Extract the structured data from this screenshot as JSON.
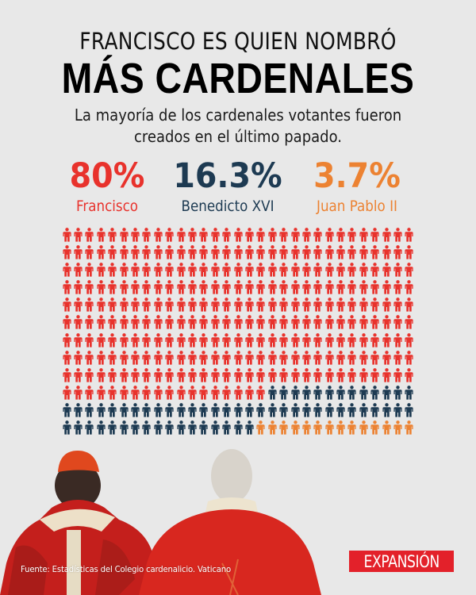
{
  "header": {
    "title_line1": "FRANCISCO ES QUIEN NOMBRÓ",
    "title_line2": "MÁS CARDENALES",
    "subtitle_line1": "La mayoría de los cardenales votantes fueron",
    "subtitle_line2": "creados en el último papado."
  },
  "stats": [
    {
      "value": "80%",
      "label": "Francisco",
      "color": "#e8322c"
    },
    {
      "value": "16.3%",
      "label": "Benedicto XVI",
      "color": "#1d3a52"
    },
    {
      "value": "3.7%",
      "label": "Juan Pablo II",
      "color": "#ec8232"
    }
  ],
  "chart_data": {
    "type": "pictogram",
    "title": "FRANCISCO ES QUIEN NOMBRÓ MÁS CARDENALES",
    "subtitle": "La mayoría de los cardenales votantes fueron creados en el último papado.",
    "grid": {
      "rows": 12,
      "columns": 31,
      "fill_order": "row-major"
    },
    "categories": [
      "Francisco",
      "Benedicto XVI",
      "Juan Pablo II"
    ],
    "values": [
      80,
      16.3,
      3.7
    ],
    "unit": "%",
    "icon_counts": [
      297,
      61,
      14
    ],
    "colors": [
      "#e8322c",
      "#1d3a52",
      "#ec8232"
    ],
    "legend_position": "top"
  },
  "footer": {
    "source": "Fuente: Estadísticas del Colegio cardenalicio. Vaticano",
    "logo": "EXPANSIÓN"
  }
}
